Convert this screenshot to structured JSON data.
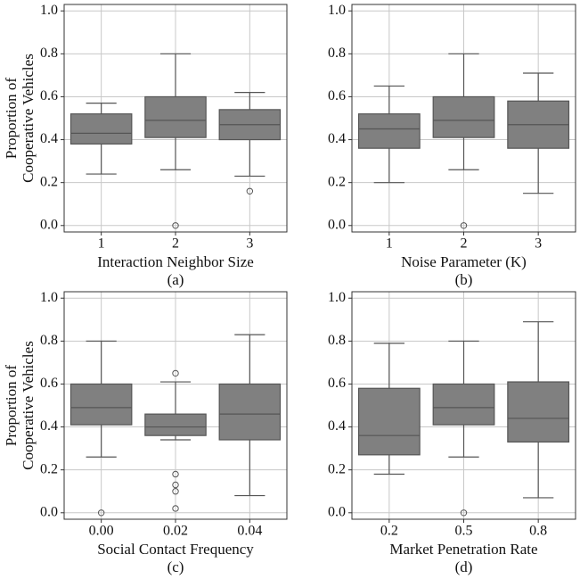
{
  "chart_data": [
    {
      "type": "box",
      "xlabel": "Interaction Neighbor Size",
      "caption": "(a)",
      "ylabel": [
        "Proportion of",
        "Cooperative Vehicles"
      ],
      "categories": [
        "1",
        "2",
        "3"
      ],
      "color": "#808080",
      "grid": true,
      "ylim": [
        -0.03,
        1.03
      ],
      "yticks": [
        {
          "value": 0,
          "label": "0.0"
        },
        0.2,
        0.4,
        0.6,
        0.8,
        {
          "value": 1,
          "label": "1.0"
        }
      ],
      "boxes": [
        {
          "whislo": 0.24,
          "q1": 0.38,
          "med": 0.43,
          "q3": 0.52,
          "whishi": 0.57,
          "fliers": []
        },
        {
          "whislo": 0.26,
          "q1": 0.41,
          "med": 0.49,
          "q3": 0.6,
          "whishi": 0.8,
          "fliers": [
            0.0
          ]
        },
        {
          "whislo": 0.23,
          "q1": 0.4,
          "med": 0.47,
          "q3": 0.54,
          "whishi": 0.62,
          "fliers": [
            0.16
          ]
        }
      ]
    },
    {
      "type": "box",
      "xlabel": "Noise Parameter (K)",
      "caption": "(b)",
      "categories": [
        "1",
        "2",
        "3"
      ],
      "color": "#808080",
      "grid": true,
      "ylim": [
        -0.03,
        1.03
      ],
      "yticks": [
        {
          "value": 0,
          "label": "0.0"
        },
        0.2,
        0.4,
        0.6,
        0.8,
        {
          "value": 1,
          "label": "1.0"
        }
      ],
      "boxes": [
        {
          "whislo": 0.2,
          "q1": 0.36,
          "med": 0.45,
          "q3": 0.52,
          "whishi": 0.65,
          "fliers": []
        },
        {
          "whislo": 0.26,
          "q1": 0.41,
          "med": 0.49,
          "q3": 0.6,
          "whishi": 0.8,
          "fliers": [
            0.0
          ]
        },
        {
          "whislo": 0.15,
          "q1": 0.36,
          "med": 0.47,
          "q3": 0.58,
          "whishi": 0.71,
          "fliers": []
        }
      ]
    },
    {
      "type": "box",
      "xlabel": "Social Contact Frequency",
      "caption": "(c)",
      "ylabel": [
        "Proportion of",
        "Cooperative Vehicles"
      ],
      "categories": [
        "0.00",
        "0.02",
        "0.04"
      ],
      "color": "#808080",
      "grid": true,
      "ylim": [
        -0.03,
        1.03
      ],
      "yticks": [
        {
          "value": 0,
          "label": "0.0"
        },
        0.2,
        0.4,
        0.6,
        0.8,
        {
          "value": 1,
          "label": "1.0"
        }
      ],
      "boxes": [
        {
          "whislo": 0.26,
          "q1": 0.41,
          "med": 0.49,
          "q3": 0.6,
          "whishi": 0.8,
          "fliers": [
            0.0
          ]
        },
        {
          "whislo": 0.34,
          "q1": 0.36,
          "med": 0.4,
          "q3": 0.46,
          "whishi": 0.61,
          "fliers": [
            0.65,
            0.18,
            0.13,
            0.1,
            0.02
          ]
        },
        {
          "whislo": 0.08,
          "q1": 0.34,
          "med": 0.46,
          "q3": 0.6,
          "whishi": 0.83,
          "fliers": []
        }
      ]
    },
    {
      "type": "box",
      "xlabel": "Market Penetration Rate",
      "caption": "(d)",
      "categories": [
        "0.2",
        "0.5",
        "0.8"
      ],
      "color": "#808080",
      "grid": true,
      "ylim": [
        -0.03,
        1.03
      ],
      "yticks": [
        {
          "value": 0,
          "label": "0.0"
        },
        0.2,
        0.4,
        0.6,
        0.8,
        {
          "value": 1,
          "label": "1.0"
        }
      ],
      "boxes": [
        {
          "whislo": 0.18,
          "q1": 0.27,
          "med": 0.36,
          "q3": 0.58,
          "whishi": 0.79,
          "fliers": []
        },
        {
          "whislo": 0.26,
          "q1": 0.41,
          "med": 0.49,
          "q3": 0.6,
          "whishi": 0.8,
          "fliers": [
            0.0
          ]
        },
        {
          "whislo": 0.07,
          "q1": 0.33,
          "med": 0.44,
          "q3": 0.61,
          "whishi": 0.89,
          "fliers": []
        }
      ]
    }
  ]
}
